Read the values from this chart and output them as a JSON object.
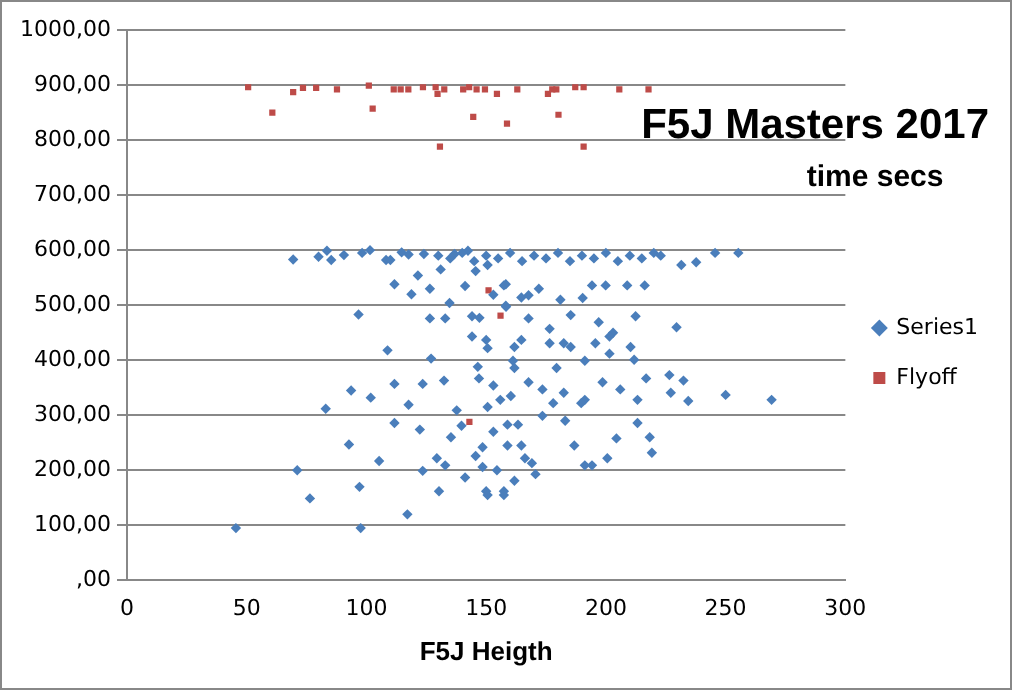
{
  "chart_data": {
    "type": "scatter",
    "title": "F5J Masters 2017",
    "subtitle": "time secs",
    "xlabel": "F5J Heigth",
    "xlim": [
      0,
      300
    ],
    "xticks": [
      0,
      50,
      100,
      150,
      200,
      250,
      300
    ],
    "ylim": [
      0,
      1000
    ],
    "yticks": [
      {
        "value": 0,
        "label": ",00"
      },
      {
        "value": 100,
        "label": "100,00"
      },
      {
        "value": 200,
        "label": "200,00"
      },
      {
        "value": 300,
        "label": "300,00"
      },
      {
        "value": 400,
        "label": "400,00"
      },
      {
        "value": 500,
        "label": "500,00"
      },
      {
        "value": 600,
        "label": "600,00"
      },
      {
        "value": 700,
        "label": "700,00"
      },
      {
        "value": 800,
        "label": "800,00"
      },
      {
        "value": 900,
        "label": "900,00"
      },
      {
        "value": 1000,
        "label": "1000,00"
      }
    ],
    "grid": "y",
    "legend": "right",
    "series": [
      {
        "name": "Series1",
        "color": "#4a7ebb",
        "marker": "diamond",
        "x": [
          69.4,
          80,
          83.5,
          85.3,
          90.6,
          96.7,
          98.2,
          101.5,
          108.2,
          110,
          111.7,
          114.7,
          117.6,
          118.8,
          121.5,
          124,
          126.5,
          126.5,
          131,
          132.9,
          134.7,
          136.8,
          141.2,
          142.4,
          144.1,
          145.6,
          147.2,
          150.6,
          153,
          158.2,
          158.2,
          164.7,
          255.3,
          245.6,
          237.7,
          231.5,
          222.9,
          216.2,
          208.9,
          199.9,
          194.2,
          190.3,
          181,
          172,
          167.7,
          157.4,
          158.3,
          212.4,
          229.5,
          203,
          197,
          185.3,
          176.5,
          167.7,
          269.2,
          250,
          234.4,
          232.4,
          226.5,
          227.1,
          216.8,
          219.2,
          218.3,
          213.2,
          213.2,
          206,
          204.4,
          200.6,
          194.2,
          191.2,
          191.2,
          189.7,
          186.8,
          183,
          182.4,
          178,
          173.5,
          173.5,
          170.6,
          169.1,
          166.2,
          164.7,
          163.3,
          161.8,
          158.9,
          157.4,
          155.9,
          153,
          150,
          148.5,
          147,
          145.6,
          45.5,
          71.1,
          76.4,
          83,
          93.6,
          92.7,
          97.1,
          97.6,
          101.8,
          105.3,
          108.8,
          111.7,
          111.7,
          117.1,
          117.6,
          123.5,
          122.3,
          123.5,
          127,
          129.4,
          130.3,
          132.4,
          132.9,
          135.3,
          137.7,
          139.7,
          141.2,
          144.1,
          146.5,
          148.5,
          150.6,
          150.6,
          153,
          154.5,
          150.6,
          157.4,
          158.9,
          160.3,
          161.2,
          164.7,
          150,
          161.8,
          176.5,
          195.6,
          201.5,
          210.3,
          185.3,
          182.4,
          201.5,
          211.8,
          179.4,
          191.2,
          161.8,
          167.7,
          198.6,
          130,
          135,
          140,
          145,
          150,
          155,
          160,
          165,
          170,
          175,
          180,
          185,
          190,
          195,
          200,
          205,
          210,
          215,
          220
        ],
        "values": [
          583,
          588,
          599,
          582,
          591,
          483,
          595,
          600,
          582,
          582,
          538,
          596,
          592,
          520,
          554,
          593,
          530,
          476,
          565,
          476,
          504,
          593,
          535,
          599,
          480,
          562,
          477,
          573,
          519,
          538,
          499,
          514,
          595,
          595,
          578,
          573,
          590,
          536,
          536,
          536,
          536,
          513,
          510,
          530,
          518,
          536,
          497,
          480,
          460,
          450,
          469,
          482,
          457,
          476,
          328,
          337,
          326,
          363,
          373,
          341,
          367,
          232,
          260,
          286,
          328,
          347,
          258,
          222,
          209,
          209,
          328,
          322,
          245,
          290,
          341,
          322,
          299,
          347,
          193,
          213,
          222,
          245,
          283,
          181,
          245,
          162,
          328,
          270,
          162,
          206,
          367,
          226,
          95,
          200,
          149,
          312,
          345,
          247,
          170,
          95,
          332,
          217,
          418,
          357,
          286,
          120,
          319,
          357,
          274,
          199,
          403,
          222,
          162,
          363,
          209,
          260,
          309,
          281,
          187,
          443,
          388,
          242,
          155,
          315,
          354,
          200,
          422,
          155,
          283,
          335,
          399,
          437,
          437,
          424,
          431,
          431,
          443,
          424,
          424,
          431,
          412,
          401,
          386,
          399,
          386,
          360,
          360,
          590,
          585,
          595,
          580,
          590,
          585,
          595,
          580,
          590,
          585,
          595,
          580,
          590,
          585,
          595,
          580,
          590,
          585,
          595
        ]
      },
      {
        "name": "Flyoff",
        "color": "#be4b48",
        "marker": "square",
        "x": [
          50.6,
          60.7,
          69.4,
          73.5,
          79,
          87.7,
          101,
          102.6,
          111.4,
          114.3,
          117.5,
          123.6,
          128.9,
          129.7,
          130.7,
          132.5,
          140.4,
          142.9,
          144.6,
          146,
          149.5,
          154.5,
          158.7,
          163,
          175.8,
          177.6,
          179.3,
          180.2,
          187.2,
          190.7,
          190.7,
          205.6,
          217.8,
          151,
          156,
          143
        ],
        "values": [
          896,
          850,
          887,
          895,
          895,
          892,
          899,
          857,
          892,
          892,
          892,
          896,
          896,
          884,
          788,
          892,
          892,
          896,
          842,
          892,
          892,
          884,
          830,
          892,
          884,
          892,
          892,
          846,
          896,
          896,
          788,
          892,
          892,
          527,
          481,
          288
        ]
      }
    ]
  }
}
